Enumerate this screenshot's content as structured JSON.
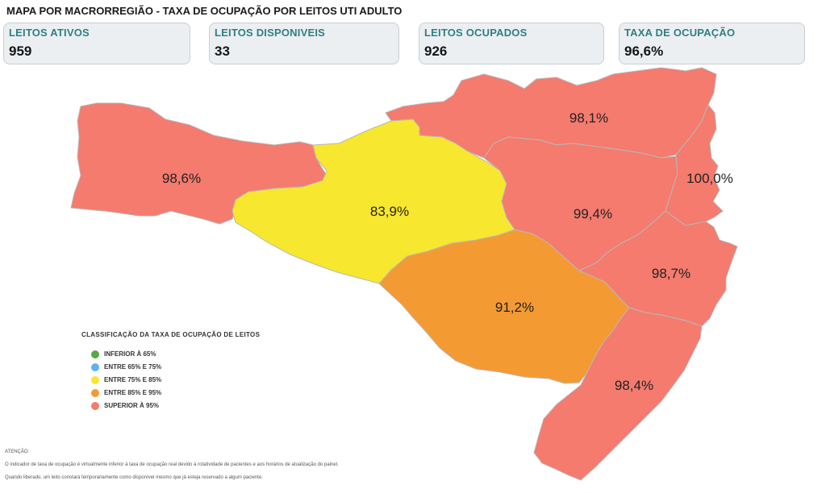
{
  "title": "MAPA POR MACRORREGIÃO - TAXA DE OCUPAÇÃO POR LEITOS UTI ADULTO",
  "kpis": [
    {
      "label": "LEITOS ATIVOS",
      "value": "959"
    },
    {
      "label": "LEITOS DISPONIVEIS",
      "value": "33"
    },
    {
      "label": "LEITOS OCUPADOS",
      "value": "926"
    },
    {
      "label": "TAXA DE OCUPAÇÃO",
      "value": "96,6%"
    }
  ],
  "regions": [
    {
      "label": "98,6%",
      "value": 98.6,
      "color": "#f47b6e"
    },
    {
      "label": "83,9%",
      "value": 83.9,
      "color": "#f7e72e"
    },
    {
      "label": "98,1%",
      "value": 98.1,
      "color": "#f47b6e"
    },
    {
      "label": "99,4%",
      "value": 99.4,
      "color": "#f47b6e"
    },
    {
      "label": "100,0%",
      "value": 100.0,
      "color": "#f47b6e"
    },
    {
      "label": "98,7%",
      "value": 98.7,
      "color": "#f47b6e"
    },
    {
      "label": "91,2%",
      "value": 91.2,
      "color": "#f49a33"
    },
    {
      "label": "98,4%",
      "value": 98.4,
      "color": "#f47b6e"
    }
  ],
  "legend": {
    "title": "CLASSIFICAÇÃO DA TAXA DE OCUPAÇÃO DE LEITOS",
    "items": [
      {
        "label": "INFERIOR À 65%",
        "color": "#5aa843"
      },
      {
        "label": "ENTRE 65% E 75%",
        "color": "#5ab4f0"
      },
      {
        "label": "ENTRE 75% E 85%",
        "color": "#f7e72e"
      },
      {
        "label": "ENTRE 85% E 95%",
        "color": "#f49a33"
      },
      {
        "label": "SUPERIOR À 95%",
        "color": "#f47b6e"
      }
    ]
  },
  "notes": {
    "heading": "ATENÇÃO:",
    "line1": "O indicador de taxa de ocupação é virtualmente inferior à taxa de ocupação real devido à rotatividade de pacientes e aos horários de atualização do painel.",
    "line2": "Quando liberado, um leito constará temporariamente como disponível mesmo que já esteja reservado a algum paciente."
  }
}
